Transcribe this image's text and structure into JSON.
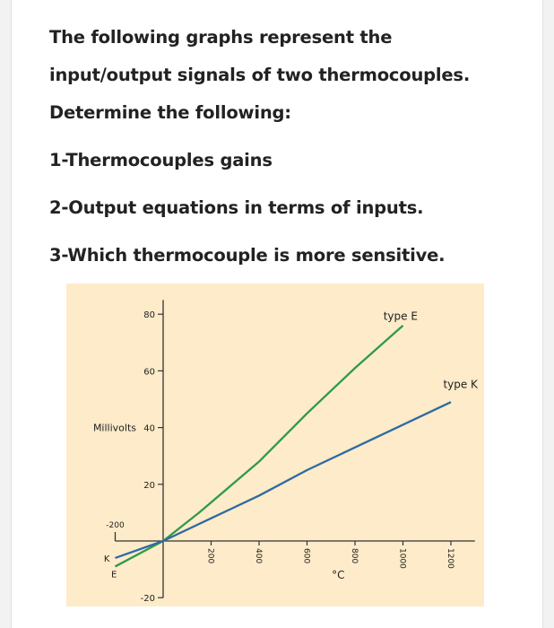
{
  "question": {
    "lines": [
      "The following graphs represent the",
      "input/output signals of two thermocouples.",
      "Determine the following:",
      "1-Thermocouples gains",
      "2-Output equations in terms of inputs.",
      "3-Which thermocouple is more sensitive."
    ]
  },
  "colors": {
    "figure_bg": "#fdebc9",
    "type_E": "#2e9a4a",
    "type_K": "#2f6aa3"
  },
  "chart_data": {
    "type": "line",
    "title": "",
    "xlabel": "°C",
    "ylabel": "Millivolts",
    "x_ticks": [
      "200",
      "400",
      "600",
      "800",
      "1000",
      "1200"
    ],
    "x_neg_tick": "-200",
    "y_ticks": [
      "80",
      "60",
      "40",
      "20",
      "-20"
    ],
    "xlim": [
      -200,
      1300
    ],
    "ylim": [
      -20,
      85
    ],
    "grid": false,
    "series": [
      {
        "name": "type E",
        "label": "type E",
        "short": "E",
        "x": [
          -200,
          0,
          150,
          400,
          600,
          800,
          1000
        ],
        "y": [
          -9,
          0,
          10,
          28,
          45,
          61,
          76
        ]
      },
      {
        "name": "type K",
        "label": "type K",
        "short": "K",
        "x": [
          -200,
          0,
          200,
          400,
          600,
          800,
          1000,
          1200
        ],
        "y": [
          -6,
          0,
          8,
          16,
          25,
          33,
          41,
          49
        ]
      }
    ]
  }
}
